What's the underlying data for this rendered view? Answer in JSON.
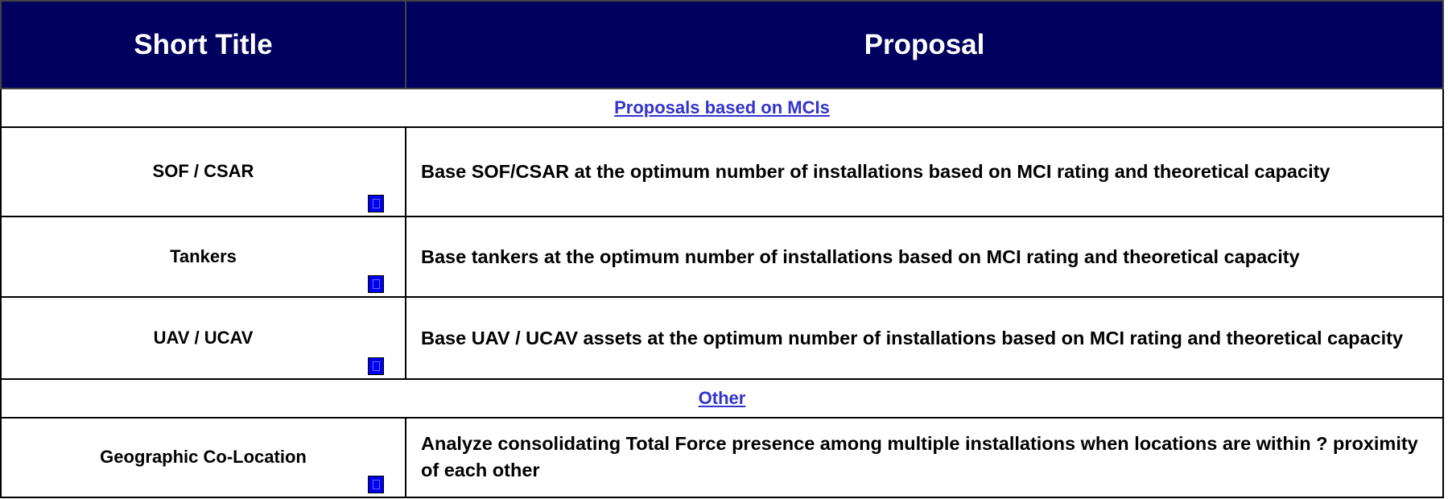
{
  "table": {
    "header": [
      "Short Title",
      "Proposal"
    ],
    "sections": [
      {
        "title": "Proposals based on MCIs",
        "rows": [
          {
            "short_title": "SOF / CSAR",
            "proposal": "Base SOF/CSAR at the optimum  number of installations based on MCI rating and theoretical capacity"
          },
          {
            "short_title": "Tankers",
            "proposal": "Base tankers at the optimum  number of installations based on MCI rating and theoretical capacity"
          },
          {
            "short_title": "UAV / UCAV",
            "proposal": "Base UAV / UCAV assets at the optimum  number of installations based on MCI rating and theoretical capacity"
          }
        ]
      },
      {
        "title": "Other",
        "rows": [
          {
            "short_title": "Geographic Co-Location",
            "proposal": "Analyze consolidating Total Force presence among multiple installations when locations are within ? proximity of each other"
          }
        ]
      }
    ]
  }
}
